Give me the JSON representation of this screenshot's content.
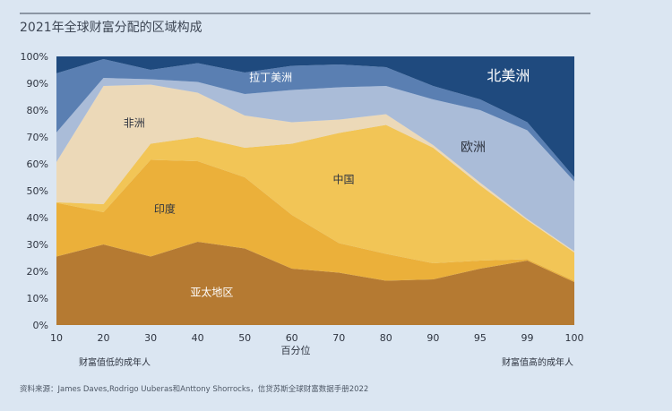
{
  "title": "2021年全球财富分配的区域构成",
  "source": "资料来源：James Daves,Rodrigo Uuberas和Anttony Shorrocks，信贷苏斯全球财富数据手册2022",
  "footnote_left": "财富值低的成年人",
  "footnote_right": "财富值高的成年人",
  "colors": {
    "background": "#dbe6f2",
    "asia_pacific": "#b57a32",
    "india": "#ebb03a",
    "china": "#f2c556",
    "africa": "#ecd9b8",
    "europe": "#aabcd8",
    "latin_america": "#5a7fb2",
    "north_america": "#1f4a7e"
  },
  "chart_data": {
    "type": "area",
    "stacked": true,
    "title": "2021年全球财富分配的区域构成",
    "xlabel": "百分位",
    "ylabel": "",
    "ylim": [
      0,
      100
    ],
    "yticks": [
      "0%",
      "10%",
      "20%",
      "30%",
      "40%",
      "50%",
      "60%",
      "70%",
      "80%",
      "90%",
      "100%"
    ],
    "categories": [
      "10",
      "20",
      "30",
      "40",
      "50",
      "60",
      "70",
      "80",
      "90",
      "95",
      "99",
      "100"
    ],
    "series": [
      {
        "name": "亚太地区",
        "key": "asia_pacific",
        "label_color": "#ffffff",
        "label_size": 12,
        "label_at": {
          "x_index": 3.3,
          "y": 12
        },
        "values": [
          25.5,
          30,
          25.5,
          31,
          28.5,
          21,
          19.5,
          16.5,
          17,
          21,
          24,
          16
        ]
      },
      {
        "name": "印度",
        "key": "india",
        "label_color": "#2e3440",
        "label_size": 12,
        "label_at": {
          "x_index": 2.3,
          "y": 43
        },
        "values": [
          20,
          12,
          36,
          30,
          26.5,
          20,
          11,
          10,
          6,
          3,
          0.5,
          0.5
        ]
      },
      {
        "name": "中国",
        "key": "china",
        "label_color": "#2e3440",
        "label_size": 12,
        "label_at": {
          "x_index": 6.1,
          "y": 54
        },
        "values": [
          0.2,
          3,
          6,
          9,
          11,
          26.5,
          41,
          48,
          43,
          28,
          14.5,
          10.5
        ]
      },
      {
        "name": "非洲",
        "key": "africa",
        "label_color": "#2e3440",
        "label_size": 12,
        "label_at": {
          "x_index": 1.65,
          "y": 75
        },
        "values": [
          15,
          44,
          22,
          16.5,
          12,
          8,
          5,
          4,
          1,
          1,
          0.5,
          0.5
        ]
      },
      {
        "name": "欧洲",
        "key": "europe",
        "label_color": "#2e3440",
        "label_size": 14,
        "label_at": {
          "x_index": 8.85,
          "y": 66
        },
        "values": [
          11,
          3,
          2,
          4,
          8,
          12,
          12,
          10.5,
          17,
          27,
          33,
          26
        ]
      },
      {
        "name": "拉丁美洲",
        "key": "latin_america",
        "label_color": "#ffffff",
        "label_size": 12,
        "label_at": {
          "x_index": 4.55,
          "y": 92
        },
        "values": [
          22,
          7,
          3.5,
          7,
          8,
          9,
          8.5,
          7,
          5,
          4,
          3,
          1.5
        ]
      },
      {
        "name": "北美洲",
        "key": "north_america",
        "label_color": "#ffffff",
        "label_size": 16,
        "label_at": {
          "x_index": 9.6,
          "y": 92.5
        },
        "values": [
          6.3,
          1,
          5,
          2.5,
          6,
          3.5,
          3,
          4,
          11,
          16,
          24.5,
          45
        ]
      }
    ]
  }
}
